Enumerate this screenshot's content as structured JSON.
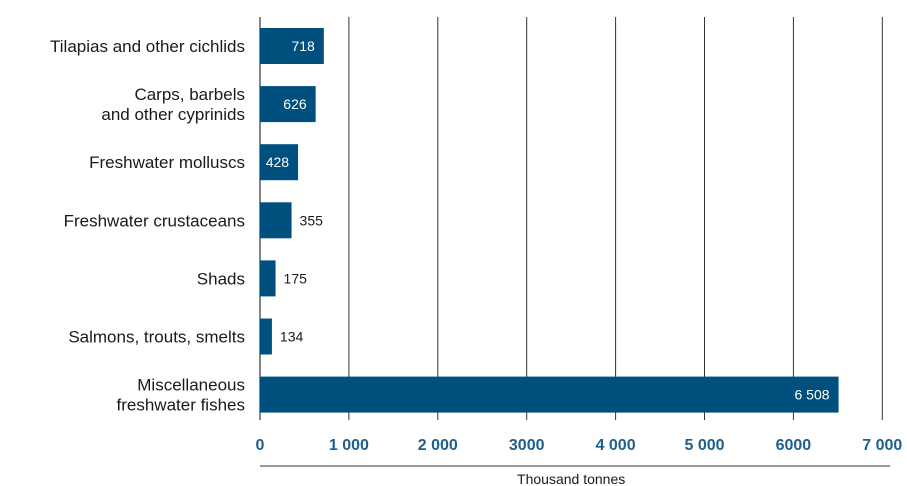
{
  "chart_data": {
    "type": "bar",
    "orientation": "horizontal",
    "categories": [
      [
        "Tilapias and other cichlids"
      ],
      [
        "Carps, barbels",
        "and other cyprinids"
      ],
      [
        "Freshwater molluscs"
      ],
      [
        "Freshwater crustaceans"
      ],
      [
        "Shads"
      ],
      [
        "Salmons, trouts, smelts"
      ],
      [
        "Miscellaneous",
        "freshwater fishes"
      ]
    ],
    "values": [
      718,
      626,
      428,
      355,
      175,
      134,
      6508
    ],
    "value_labels": [
      "718",
      "626",
      "428",
      "355",
      "175",
      "134",
      "6 508"
    ],
    "title": "",
    "xlabel": "Thousand tonnes",
    "ylabel": "",
    "xlim": [
      0,
      7000
    ],
    "x_ticks": [
      0,
      1000,
      2000,
      3000,
      4000,
      5000,
      6000,
      7000
    ],
    "x_tick_labels": [
      "0",
      "1 000",
      "2 000",
      "3000",
      "4 000",
      "5 000",
      "6000",
      "7 000"
    ],
    "grid": "vertical",
    "legend": "none",
    "colors": {
      "bar": "#00507F",
      "tick_label": "#1E5F8C",
      "grid": "#333333",
      "label_inside": "#ffffff",
      "label_outside": "#1a1a1a"
    }
  }
}
